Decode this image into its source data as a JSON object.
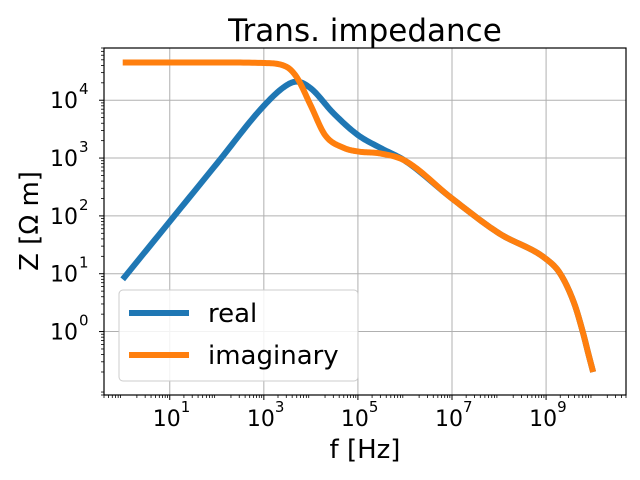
{
  "chart_data": {
    "type": "line",
    "title": "Trans. impedance",
    "xlabel": "f [Hz]",
    "ylabel": "Z [Ω m]",
    "xscale": "log",
    "yscale": "log",
    "xlim": [
      0.4,
      50000000000
    ],
    "ylim": [
      0.08,
      80000
    ],
    "grid": true,
    "legend_position": "bottom-left",
    "x_ticks": [
      {
        "base": "10",
        "exp": "1",
        "value": 10
      },
      {
        "base": "10",
        "exp": "3",
        "value": 1000
      },
      {
        "base": "10",
        "exp": "5",
        "value": 100000
      },
      {
        "base": "10",
        "exp": "7",
        "value": 10000000
      },
      {
        "base": "10",
        "exp": "9",
        "value": 1000000000
      }
    ],
    "y_ticks": [
      {
        "base": "10",
        "exp": "0",
        "value": 1
      },
      {
        "base": "10",
        "exp": "1",
        "value": 10
      },
      {
        "base": "10",
        "exp": "2",
        "value": 100
      },
      {
        "base": "10",
        "exp": "3",
        "value": 1000
      },
      {
        "base": "10",
        "exp": "4",
        "value": 10000
      }
    ],
    "series": [
      {
        "name": "real",
        "color": "#1f77b4",
        "x": [
          1,
          10,
          100,
          1000,
          3000,
          5000,
          10000,
          30000,
          100000,
          300000,
          1000000,
          10000000,
          100000000,
          1000000000,
          2000000000,
          4000000000,
          6000000000,
          8000000000,
          10000000000
        ],
        "y": [
          8,
          80,
          800,
          8000,
          18000,
          21000,
          16000,
          6000,
          2500,
          1500,
          900,
          200,
          50,
          18,
          10,
          3,
          1,
          0.4,
          0.2
        ]
      },
      {
        "name": "imaginary",
        "color": "#ff7f0e",
        "x": [
          1,
          10,
          100,
          1000,
          3000,
          5000,
          10000,
          20000,
          50000,
          100000,
          300000,
          1000000,
          10000000,
          100000000,
          1000000000,
          2000000000,
          4000000000,
          6000000000,
          8000000000,
          10000000000
        ],
        "y": [
          45000,
          45000,
          45000,
          44000,
          38000,
          25000,
          8000,
          2500,
          1500,
          1300,
          1200,
          900,
          200,
          50,
          18,
          10,
          3,
          1,
          0.4,
          0.2
        ]
      }
    ]
  }
}
